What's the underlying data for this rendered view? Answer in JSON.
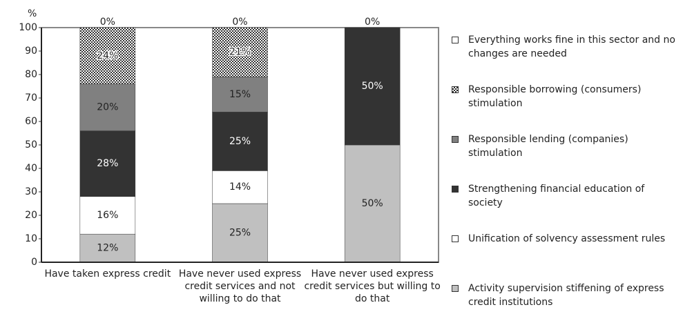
{
  "chart_data": {
    "type": "stacked_bar",
    "y_label": "%",
    "categories": [
      "Have taken express credit",
      "Have never used express credit services and not willing to do that",
      "Have never used express credit services but willing to do that"
    ],
    "series": [
      {
        "name": "Everything works fine in this sector and no changes are needed",
        "color": "#ffffff",
        "values": [
          0,
          0,
          0
        ],
        "value_labels": [
          "0%",
          "0%",
          "0%"
        ]
      },
      {
        "name": "Responsible borrowing (consumers) stimulation",
        "color": "#555555",
        "pattern": "crosshatch",
        "values": [
          24,
          21,
          0
        ],
        "value_labels": [
          "24%",
          "21%",
          null
        ]
      },
      {
        "name": "Responsible lending (companies) stimulation",
        "color": "#808080",
        "values": [
          20,
          15,
          0
        ],
        "value_labels": [
          "20%",
          "15%",
          null
        ]
      },
      {
        "name": "Strengthening financial education of society",
        "color": "#333333",
        "values": [
          28,
          25,
          50
        ],
        "value_labels": [
          "28%",
          "25%",
          "50%"
        ]
      },
      {
        "name": "Unification of solvency assessment rules",
        "color": "#ffffff",
        "values": [
          16,
          14,
          0
        ],
        "value_labels": [
          "16%",
          "14%",
          null
        ]
      },
      {
        "name": "Activity supervision stiffening of express credit institutions",
        "color": "#c0c0c0",
        "values": [
          12,
          25,
          50
        ],
        "value_labels": [
          "12%",
          "25%",
          "50%"
        ]
      }
    ],
    "ylim": [
      0,
      100
    ],
    "yticks": [
      0,
      10,
      20,
      30,
      40,
      50,
      60,
      70,
      80,
      90,
      100
    ]
  }
}
